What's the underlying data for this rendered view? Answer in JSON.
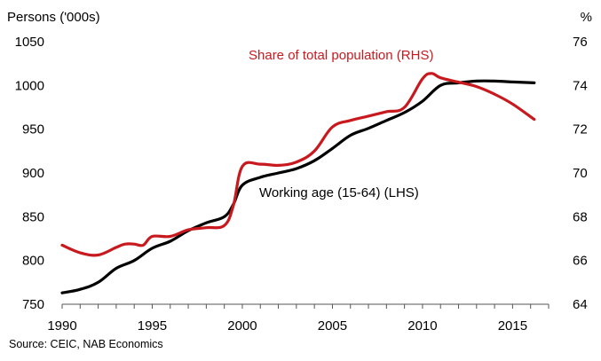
{
  "chart_data": {
    "type": "line",
    "left_axis_title": "Persons ('000s)",
    "right_axis_title": "%",
    "source": "Source: CEIC, NAB Economics",
    "x_ticks": [
      "1990",
      "1995",
      "2000",
      "2005",
      "2010",
      "2015"
    ],
    "xlim": [
      1990,
      2017
    ],
    "y_left": {
      "min": 750,
      "max": 1050,
      "ticks": [
        "750",
        "800",
        "850",
        "900",
        "950",
        "1000",
        "1050"
      ]
    },
    "y_right": {
      "min": 64,
      "max": 76,
      "ticks": [
        "64",
        "66",
        "68",
        "70",
        "72",
        "74",
        "76"
      ]
    },
    "series": [
      {
        "name": "Working age (15-64) (LHS)",
        "axis": "left",
        "color": "#000000",
        "x": [
          1990.0,
          1991.0,
          1992.0,
          1993.0,
          1994.0,
          1995.0,
          1996.0,
          1997.0,
          1998.0,
          1999.0,
          1999.5,
          2000.0,
          2001.0,
          2002.0,
          2003.0,
          2004.0,
          2005.0,
          2006.0,
          2007.0,
          2008.0,
          2009.0,
          2010.0,
          2011.0,
          2012.0,
          2013.0,
          2014.0,
          2015.0,
          2016.2
        ],
        "y": [
          763,
          767,
          775,
          791,
          800,
          814,
          822,
          834,
          843,
          850,
          864,
          886,
          895,
          900,
          905,
          914,
          928,
          943,
          951,
          960,
          969,
          982,
          1000,
          1003,
          1005,
          1005,
          1004,
          1003
        ]
      },
      {
        "name": "Share of total population (RHS)",
        "axis": "right",
        "color": "#c8191e",
        "x": [
          1990.0,
          1991.0,
          1992.0,
          1993.0,
          1993.5,
          1994.0,
          1994.5,
          1995.0,
          1996.0,
          1997.0,
          1998.0,
          1999.0,
          1999.5,
          2000.0,
          2001.0,
          2002.0,
          2003.0,
          2004.0,
          2005.0,
          2006.0,
          2007.0,
          2008.0,
          2009.0,
          2010.0,
          2010.5,
          2011.0,
          2012.0,
          2013.0,
          2014.0,
          2015.0,
          2016.2
        ],
        "y": [
          66.7,
          66.35,
          66.25,
          66.6,
          66.75,
          66.75,
          66.7,
          67.1,
          67.1,
          67.4,
          67.5,
          67.6,
          68.5,
          70.3,
          70.4,
          70.35,
          70.5,
          71.0,
          72.1,
          72.4,
          72.6,
          72.8,
          73.0,
          74.3,
          74.55,
          74.35,
          74.15,
          73.95,
          73.6,
          73.15,
          72.45
        ]
      }
    ],
    "annotations": [
      {
        "text": "Share of total population (RHS)",
        "color": "#c8191e"
      },
      {
        "text": "Working age (15-64) (LHS)",
        "color": "#000000"
      }
    ]
  }
}
